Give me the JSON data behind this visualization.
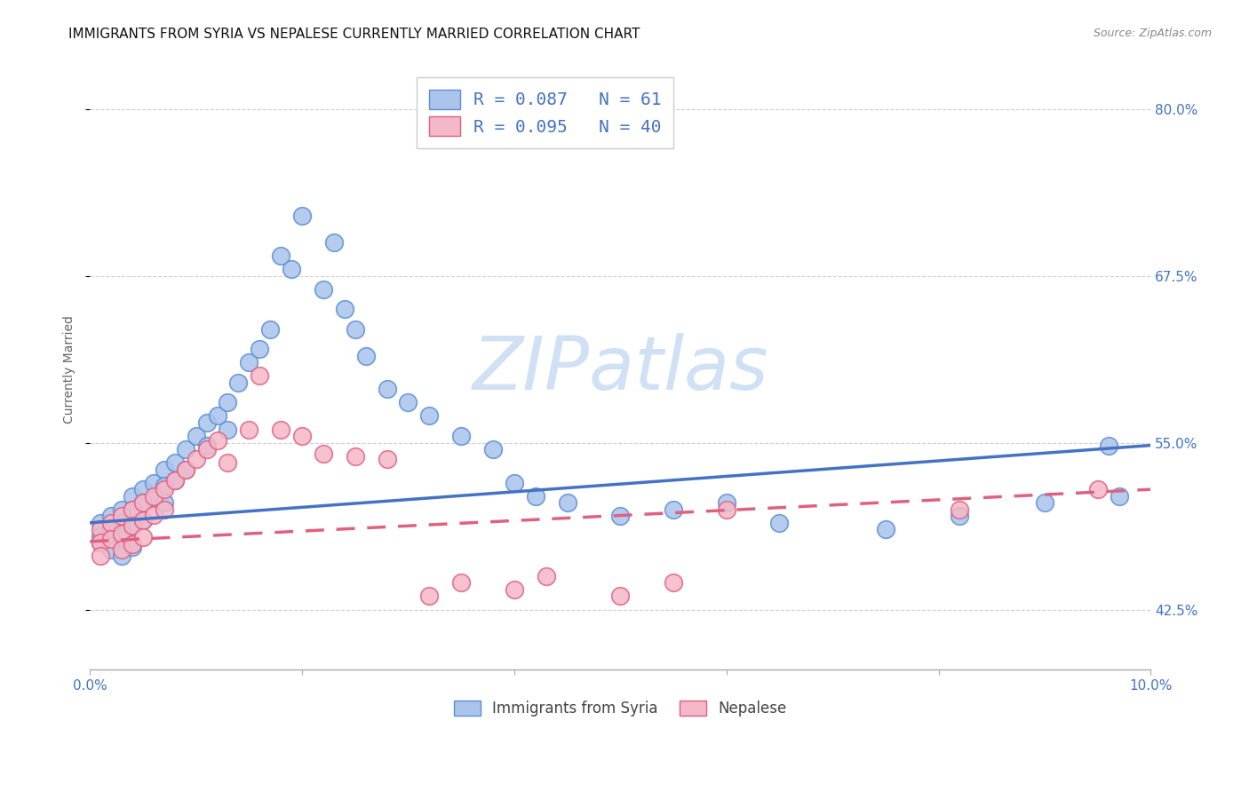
{
  "title": "IMMIGRANTS FROM SYRIA VS NEPALESE CURRENTLY MARRIED CORRELATION CHART",
  "source": "Source: ZipAtlas.com",
  "ylabel": "Currently Married",
  "xlim": [
    0.0,
    0.1
  ],
  "ylim": [
    0.38,
    0.83
  ],
  "blue_R": 0.087,
  "blue_N": 61,
  "pink_R": 0.095,
  "pink_N": 40,
  "blue_color": "#aac4ec",
  "pink_color": "#f5b8c8",
  "blue_edge_color": "#5b8fd4",
  "pink_edge_color": "#e06080",
  "blue_line_color": "#4472c4",
  "pink_line_color": "#e06080",
  "watermark_text": "ZIPatlas",
  "watermark_color": "#d0e0f5",
  "ytick_vals": [
    0.425,
    0.55,
    0.675,
    0.8
  ],
  "ytick_labels": [
    "42.5%",
    "55.0%",
    "67.5%",
    "80.0%"
  ],
  "title_fontsize": 11,
  "axis_label_fontsize": 10,
  "tick_fontsize": 11,
  "legend_fontsize": 14,
  "blue_scatter_x": [
    0.001,
    0.001,
    0.001,
    0.002,
    0.002,
    0.002,
    0.003,
    0.003,
    0.003,
    0.003,
    0.004,
    0.004,
    0.004,
    0.004,
    0.005,
    0.005,
    0.005,
    0.006,
    0.006,
    0.007,
    0.007,
    0.007,
    0.008,
    0.008,
    0.009,
    0.009,
    0.01,
    0.011,
    0.011,
    0.012,
    0.013,
    0.013,
    0.014,
    0.015,
    0.016,
    0.017,
    0.018,
    0.019,
    0.02,
    0.022,
    0.023,
    0.024,
    0.025,
    0.026,
    0.028,
    0.03,
    0.032,
    0.035,
    0.038,
    0.04,
    0.042,
    0.045,
    0.05,
    0.055,
    0.06,
    0.065,
    0.075,
    0.082,
    0.09,
    0.096,
    0.097
  ],
  "blue_scatter_y": [
    0.49,
    0.48,
    0.475,
    0.495,
    0.485,
    0.47,
    0.5,
    0.49,
    0.48,
    0.465,
    0.51,
    0.5,
    0.488,
    0.472,
    0.515,
    0.505,
    0.492,
    0.52,
    0.508,
    0.53,
    0.518,
    0.505,
    0.535,
    0.522,
    0.545,
    0.53,
    0.555,
    0.565,
    0.548,
    0.57,
    0.58,
    0.56,
    0.595,
    0.61,
    0.62,
    0.635,
    0.69,
    0.68,
    0.72,
    0.665,
    0.7,
    0.65,
    0.635,
    0.615,
    0.59,
    0.58,
    0.57,
    0.555,
    0.545,
    0.52,
    0.51,
    0.505,
    0.495,
    0.5,
    0.505,
    0.49,
    0.485,
    0.495,
    0.505,
    0.548,
    0.51
  ],
  "pink_scatter_x": [
    0.001,
    0.001,
    0.001,
    0.002,
    0.002,
    0.003,
    0.003,
    0.003,
    0.004,
    0.004,
    0.004,
    0.005,
    0.005,
    0.005,
    0.006,
    0.006,
    0.007,
    0.007,
    0.008,
    0.009,
    0.01,
    0.011,
    0.012,
    0.013,
    0.015,
    0.016,
    0.018,
    0.02,
    0.022,
    0.025,
    0.028,
    0.032,
    0.035,
    0.04,
    0.043,
    0.05,
    0.055,
    0.06,
    0.082,
    0.095
  ],
  "pink_scatter_y": [
    0.485,
    0.475,
    0.465,
    0.49,
    0.478,
    0.495,
    0.482,
    0.47,
    0.5,
    0.488,
    0.474,
    0.505,
    0.492,
    0.479,
    0.51,
    0.496,
    0.515,
    0.5,
    0.522,
    0.53,
    0.538,
    0.545,
    0.552,
    0.535,
    0.56,
    0.6,
    0.56,
    0.555,
    0.542,
    0.54,
    0.538,
    0.435,
    0.445,
    0.44,
    0.45,
    0.435,
    0.445,
    0.5,
    0.5,
    0.515
  ],
  "blue_line_x": [
    0.0,
    0.1
  ],
  "blue_line_y": [
    0.49,
    0.548
  ],
  "pink_line_x": [
    0.0,
    0.1
  ],
  "pink_line_y": [
    0.476,
    0.515
  ]
}
